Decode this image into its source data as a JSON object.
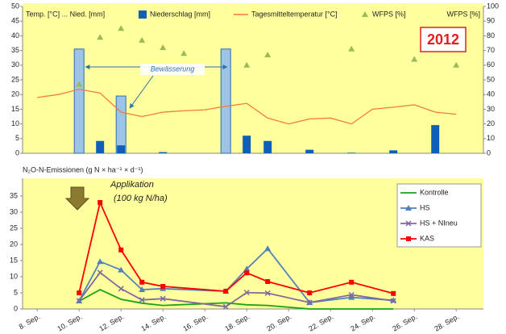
{
  "chart_data": [
    {
      "type": "combo",
      "y_label": "Temp. [°C] ... Nied. [mm]",
      "y2_label": "WFPS [%]",
      "badge": "2012",
      "annotation": "Bewässerung",
      "xlim": [
        7.3,
        29.3
      ],
      "ylim": [
        0,
        50
      ],
      "yticks": [
        0,
        5,
        10,
        15,
        20,
        25,
        30,
        35,
        40,
        45,
        50
      ],
      "y2lim": [
        0,
        100
      ],
      "y2ticks": [
        0,
        10,
        20,
        30,
        40,
        50,
        60,
        70,
        80,
        90,
        100
      ],
      "background": "#ffff9e",
      "irrigation": {
        "x": [
          10,
          12,
          17
        ],
        "values": [
          35.5,
          19.5,
          35.5
        ],
        "color": "#9dc3e6",
        "edgecolor": "#2f6fad"
      },
      "series": [
        {
          "name": "Niederschlag [mm]",
          "type": "bar",
          "color": "#0f5fb8",
          "x": [
            11,
            12,
            14,
            18,
            19,
            21,
            23,
            25,
            27
          ],
          "values": [
            4.2,
            2.7,
            0.4,
            6,
            4.2,
            1.2,
            0.2,
            1,
            9.6
          ]
        },
        {
          "name": "Tagesmitteltemperatur [°C]",
          "type": "line",
          "color": "#f07c3a",
          "x": [
            8,
            9,
            10,
            11,
            12,
            13,
            14,
            15,
            16,
            17,
            18,
            19,
            20,
            21,
            22,
            23,
            24,
            25,
            26,
            27,
            28
          ],
          "values": [
            19,
            20,
            21.8,
            20.5,
            14,
            12.5,
            14,
            14.5,
            14.8,
            16,
            17,
            12,
            10,
            11.7,
            12,
            10,
            15,
            15.7,
            16.5,
            14,
            13.3
          ]
        },
        {
          "name": "WFPS [%]",
          "type": "scatter",
          "axis": "y2",
          "color": "#9bbb59",
          "x": [
            10,
            11,
            12,
            13,
            14,
            15,
            18,
            19,
            23,
            26,
            28
          ],
          "values": [
            47,
            79,
            85,
            77,
            72,
            68,
            60,
            67,
            71,
            64,
            60
          ]
        }
      ]
    },
    {
      "type": "line",
      "title": "N₂O-N-Emissionen (g N × ha⁻¹ × d⁻¹)",
      "annotation": [
        "Applikation",
        "(100 kg N/ha)"
      ],
      "xlim": [
        7.3,
        29.3
      ],
      "xticks": [
        {
          "value": 8,
          "label": "8. Sep."
        },
        {
          "value": 10,
          "label": "10. Sep."
        },
        {
          "value": 12,
          "label": "12. Sep."
        },
        {
          "value": 14,
          "label": "14. Sep."
        },
        {
          "value": 16,
          "label": "16. Sep."
        },
        {
          "value": 18,
          "label": "18. Sep."
        },
        {
          "value": 20,
          "label": "20. Sep."
        },
        {
          "value": 22,
          "label": "22. Sep."
        },
        {
          "value": 24,
          "label": "24. Sep."
        },
        {
          "value": 26,
          "label": "26. Sep."
        },
        {
          "value": 28,
          "label": "28. Sep."
        }
      ],
      "ylim": [
        0,
        40.5
      ],
      "yticks": [
        0,
        5,
        10,
        15,
        20,
        25,
        30,
        35
      ],
      "background": "#ffff9e",
      "x": [
        10,
        11,
        12,
        13,
        14,
        17,
        18,
        19,
        21,
        23,
        25
      ],
      "series": [
        {
          "name": "Kontrolle",
          "color": "#1aa31a",
          "marker": "none",
          "values": [
            2.4,
            6,
            3,
            1.8,
            1.1,
            1.9,
            1.3,
            1.1,
            0,
            0,
            0
          ]
        },
        {
          "name": "HS",
          "color": "#4f81bd",
          "marker": "triangle",
          "values": [
            2.5,
            14.7,
            12.1,
            6,
            6.3,
            5.5,
            12.4,
            18.7,
            2,
            3.6,
            2.7
          ]
        },
        {
          "name": "HS + NIneu",
          "color": "#7f6a9f",
          "marker": "x",
          "values": [
            2.5,
            11.3,
            6.3,
            2.8,
            3.2,
            0.7,
            5.1,
            4.9,
            2,
            4.4,
            2.5
          ]
        },
        {
          "name": "KAS",
          "color": "#ff0000",
          "marker": "square",
          "values": [
            5,
            33,
            18.3,
            8.3,
            7,
            5.5,
            11.2,
            8.5,
            5,
            8.3,
            4.8
          ]
        }
      ]
    }
  ]
}
